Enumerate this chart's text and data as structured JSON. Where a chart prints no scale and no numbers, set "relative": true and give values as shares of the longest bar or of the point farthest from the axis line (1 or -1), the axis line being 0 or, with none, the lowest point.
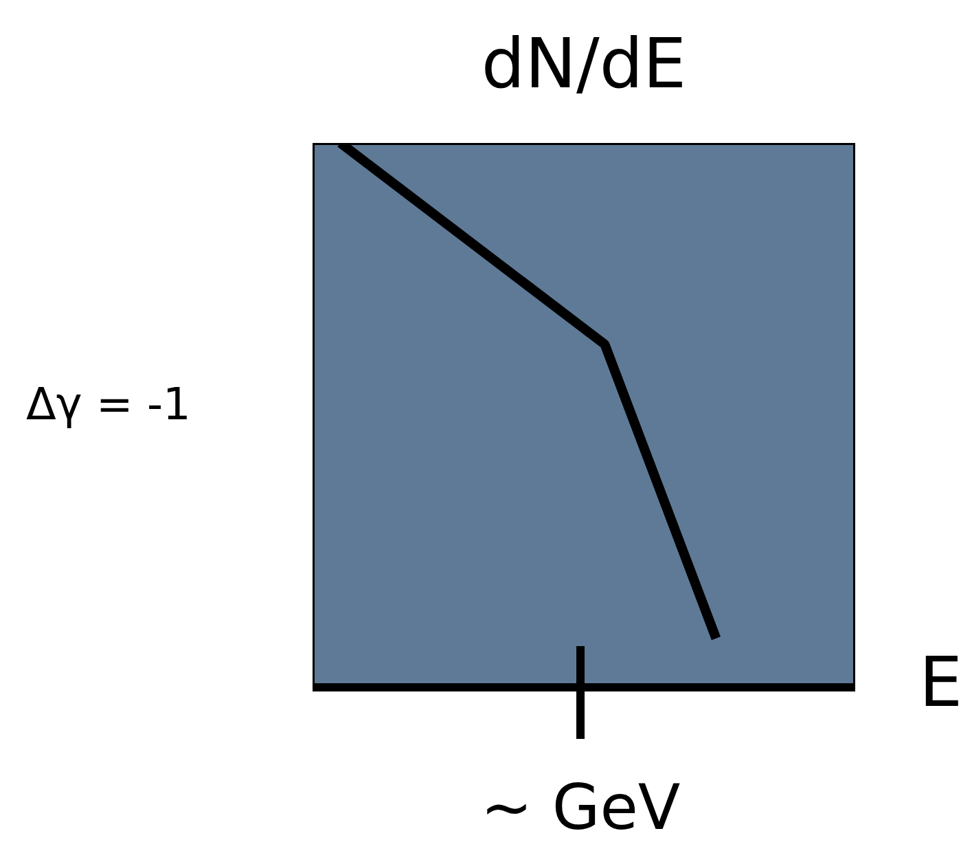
{
  "chart_data": {
    "type": "line",
    "relative": true,
    "ylabel": "dN/dE",
    "xlabel": "E",
    "annotations": [
      "Δγ = -1",
      "~ GeV"
    ],
    "categories": [
      null,
      null,
      null,
      null,
      null,
      null,
      null,
      null,
      null,
      null,
      null,
      null,
      null,
      null,
      null,
      null,
      null,
      null,
      null,
      null,
      null,
      null,
      null,
      null,
      null,
      null,
      null,
      null,
      null,
      null,
      null,
      null,
      null,
      null,
      null,
      null,
      null,
      null,
      null,
      null
    ],
    "series": [
      {
        "color": "#000000",
        "values": [
          null,
          null,
          1,
          null,
          null,
          null,
          null,
          null,
          null,
          null,
          null,
          null,
          null,
          null,
          null,
          null,
          null,
          null,
          null,
          null,
          null,
          0.63,
          null,
          null,
          null,
          null,
          null,
          null,
          null,
          0.09,
          null,
          null,
          null,
          null,
          null,
          null,
          null,
          null,
          null,
          null
        ]
      }
    ],
    "marker": "none",
    "line_style": "solid"
  }
}
